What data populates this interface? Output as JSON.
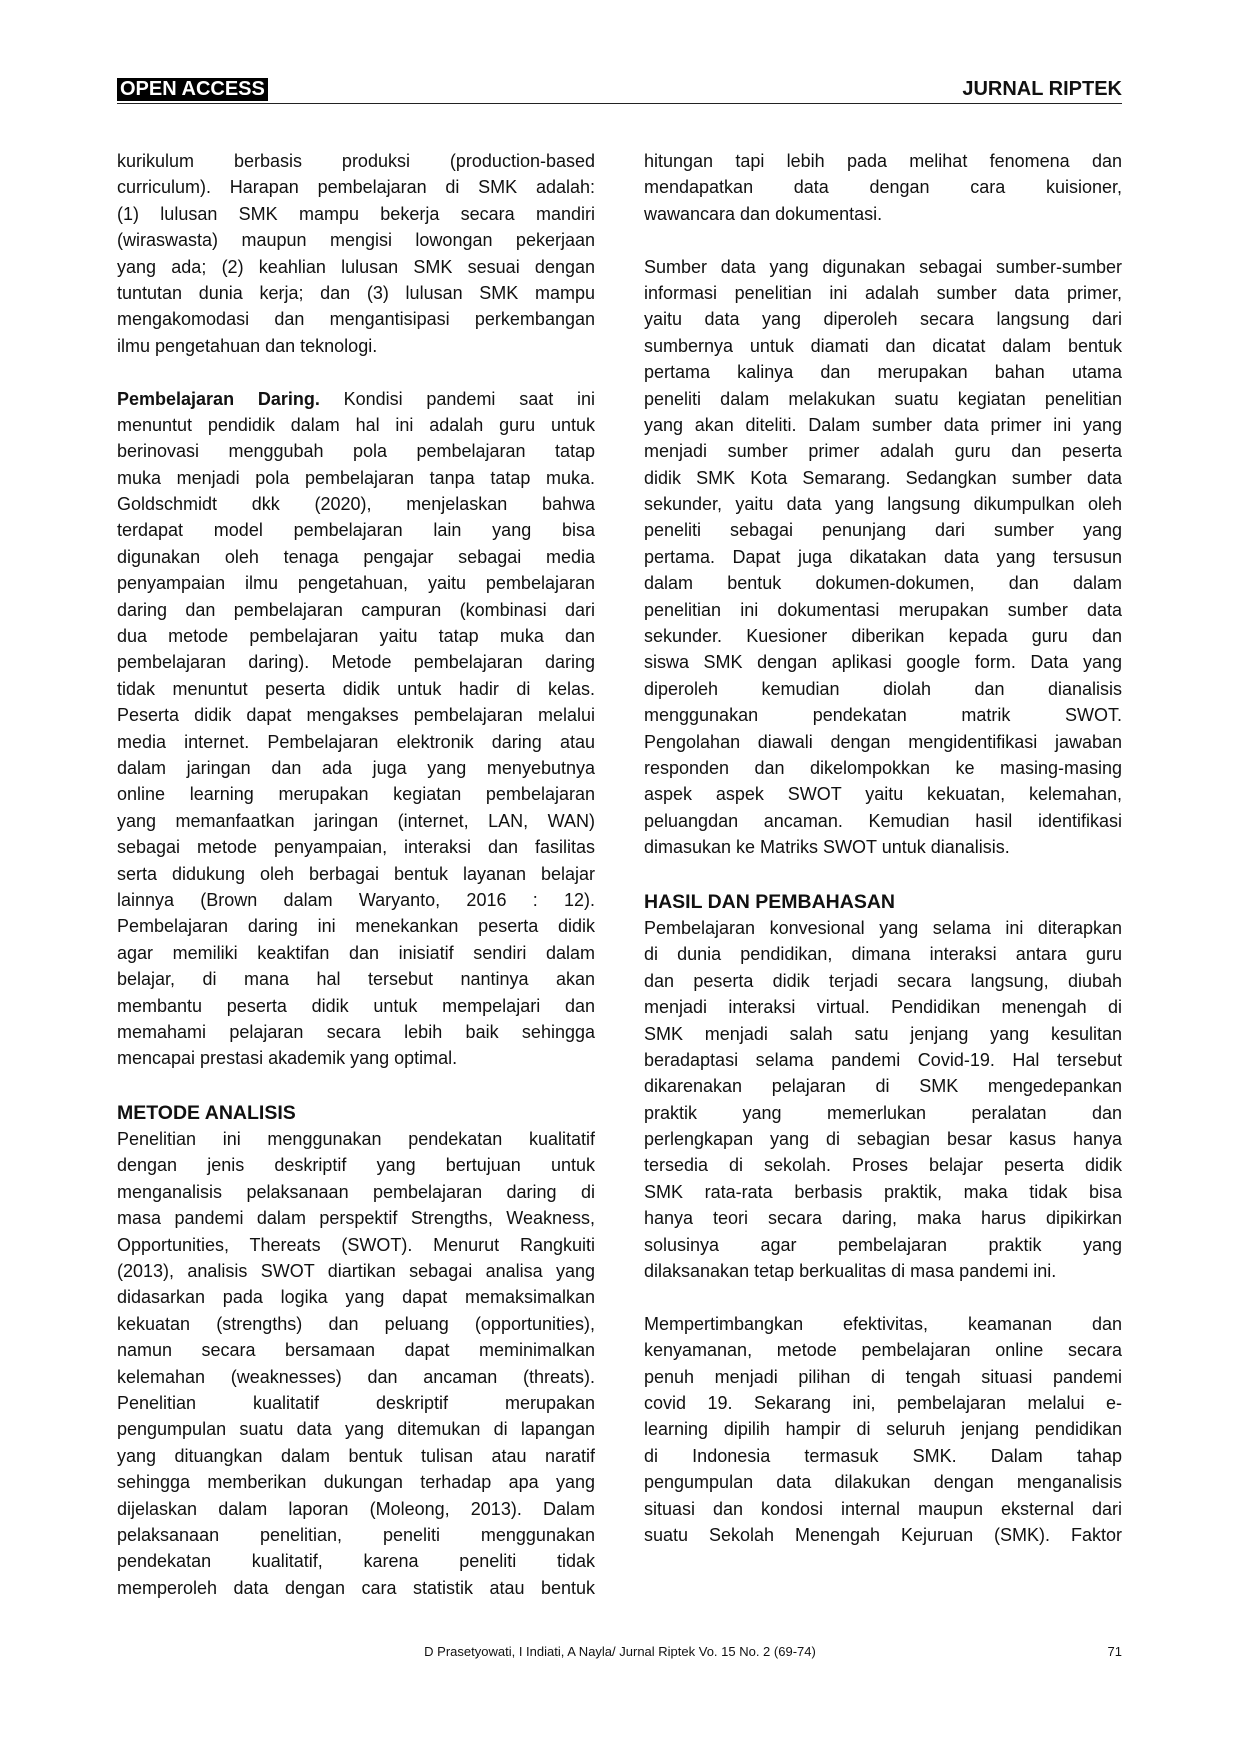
{
  "header": {
    "left": "OPEN ACCESS",
    "right": "JURNAL RIPTEK"
  },
  "columns": [
    [
      {
        "lines": [
          "kurikulum berbasis produksi (production-based",
          "curriculum). Harapan pembelajaran di SMK adalah:",
          "(1) lulusan SMK mampu bekerja secara mandiri",
          "(wiraswasta) maupun mengisi lowongan pekerjaan",
          "yang ada; (2) keahlian lulusan SMK sesuai dengan",
          "tuntutan dunia kerja; dan (3) lulusan SMK mampu",
          "mengakomodasi dan mengantisipasi perkembangan",
          "ilmu pengetahuan dan teknologi."
        ]
      },
      {
        "lead": "Pembelajaran Daring.",
        "lines": [
          "Kondisi pandemi saat ini",
          "menuntut pendidik dalam hal ini adalah guru untuk",
          "berinovasi menggubah pola pembelajaran tatap",
          "muka menjadi pola pembelajaran tanpa tatap muka.",
          "Goldschmidt dkk (2020), menjelaskan bahwa",
          "terdapat model pembelajaran lain yang bisa",
          "digunakan oleh tenaga pengajar sebagai media",
          "penyampaian ilmu pengetahuan, yaitu pembelajaran",
          "daring dan pembelajaran campuran (kombinasi dari",
          "dua metode pembelajaran yaitu tatap muka dan",
          "pembelajaran daring). Metode pembelajaran daring",
          "tidak menuntut peserta didik untuk hadir di kelas.",
          "Peserta didik dapat mengakses pembelajaran melalui",
          "media internet. Pembelajaran elektronik daring atau",
          "dalam jaringan dan ada juga yang menyebutnya",
          "online learning merupakan kegiatan pembelajaran",
          "yang memanfaatkan jaringan (internet, LAN, WAN)",
          "sebagai metode penyampaian, interaksi dan fasilitas",
          "serta didukung oleh berbagai bentuk layanan belajar",
          "lainnya (Brown dalam Waryanto, 2016 : 12).",
          "Pembelajaran daring ini menekankan peserta didik",
          "agar memiliki keaktifan dan inisiatif sendiri dalam",
          "belajar, di mana hal tersebut nantinya akan",
          "membantu peserta didik untuk mempelajari dan",
          "memahami pelajaran secara lebih baik sehingga",
          "mencapai prestasi akademik yang optimal."
        ]
      },
      {
        "heading": "METODE ANALISIS",
        "lines": [
          "Penelitian ini menggunakan pendekatan kualitatif",
          "dengan jenis deskriptif yang bertujuan untuk",
          "menganalisis pelaksanaan pembelajaran daring di",
          "masa pandemi dalam perspektif Strengths, Weakness,",
          "Opportunities, Thereats (SWOT). Menurut Rangkuiti",
          "(2013), analisis SWOT diartikan sebagai analisa yang",
          "didasarkan pada logika yang dapat memaksimalkan",
          "kekuatan (strengths) dan peluang (opportunities),",
          "namun secara bersamaan dapat meminimalkan",
          "kelemahan (weaknesses) dan ancaman (threats).",
          "Penelitian kualitatif deskriptif merupakan",
          "pengumpulan suatu data yang ditemukan di lapangan",
          "yang dituangkan dalam bentuk tulisan atau naratif",
          "sehingga memberikan dukungan terhadap apa yang",
          "dijelaskan dalam laporan (Moleong, 2013). Dalam",
          "pelaksanaan penelitian, peneliti menggunakan",
          "pendekatan kualitatif, karena peneliti tidak",
          "memperoleh data dengan cara statistik atau bentuk"
        ]
      }
    ],
    [
      {
        "lines": [
          "hitungan tapi lebih pada melihat fenomena dan",
          "mendapatkan data dengan cara kuisioner,",
          "wawancara dan dokumentasi."
        ]
      },
      {
        "lines": [
          "Sumber data yang digunakan sebagai sumber-sumber",
          "informasi penelitian ini adalah sumber data primer,",
          "yaitu data yang diperoleh secara langsung dari",
          "sumbernya untuk diamati dan dicatat dalam bentuk",
          "pertama kalinya dan merupakan bahan utama",
          "peneliti dalam melakukan suatu kegiatan penelitian",
          "yang akan diteliti. Dalam sumber data primer ini yang",
          "menjadi sumber primer adalah guru dan peserta",
          "didik SMK Kota Semarang. Sedangkan sumber data",
          "sekunder, yaitu data yang langsung dikumpulkan oleh",
          "peneliti sebagai penunjang dari sumber yang",
          "pertama. Dapat juga dikatakan data yang tersusun",
          "dalam bentuk dokumen-dokumen, dan dalam",
          "penelitian ini dokumentasi merupakan sumber data",
          "sekunder. Kuesioner diberikan kepada guru dan",
          "siswa SMK dengan aplikasi google form. Data yang",
          "diperoleh kemudian diolah dan dianalisis",
          "menggunakan pendekatan matrik SWOT.",
          "Pengolahan diawali dengan mengidentifikasi jawaban",
          "responden dan dikelompokkan ke masing-masing",
          "aspek aspek SWOT yaitu kekuatan, kelemahan,",
          "peluangdan ancaman. Kemudian hasil identifikasi",
          "dimasukan ke Matriks SWOT untuk dianalisis."
        ]
      },
      {
        "heading": "HASIL DAN PEMBAHASAN",
        "lines": [
          "Pembelajaran konvesional yang selama ini diterapkan",
          "di dunia pendidikan, dimana interaksi antara guru",
          "dan peserta didik terjadi secara langsung, diubah",
          "menjadi interaksi virtual. Pendidikan menengah di",
          "SMK menjadi salah satu jenjang yang kesulitan",
          "beradaptasi selama pandemi Covid-19. Hal tersebut",
          "dikarenakan pelajaran di SMK mengedepankan",
          "praktik yang memerlukan peralatan dan",
          "perlengkapan yang di sebagian besar kasus hanya",
          "tersedia di sekolah. Proses belajar peserta didik",
          "SMK rata-rata berbasis praktik, maka tidak bisa",
          "hanya teori secara daring, maka harus dipikirkan",
          "solusinya agar pembelajaran praktik yang",
          "dilaksanakan tetap berkualitas di masa pandemi ini."
        ]
      },
      {
        "lines": [
          "Mempertimbangkan efektivitas, keamanan dan",
          "kenyamanan, metode pembelajaran online secara",
          "penuh menjadi pilihan di tengah situasi pandemi",
          "covid 19. Sekarang ini, pembelajaran melalui e-",
          "learning dipilih hampir di seluruh jenjang pendidikan",
          "di Indonesia termasuk SMK. Dalam tahap",
          "pengumpulan data dilakukan dengan menganalisis",
          "situasi dan kondosi internal maupun eksternal dari",
          "suatu Sekolah Menengah Kejuruan (SMK). Faktor"
        ]
      }
    ]
  ],
  "footer": {
    "citation": "D Prasetyowati, I Indiati, A Nayla/ Jurnal Riptek Vo. 15 No. 2 (69-74)",
    "page": "71"
  }
}
